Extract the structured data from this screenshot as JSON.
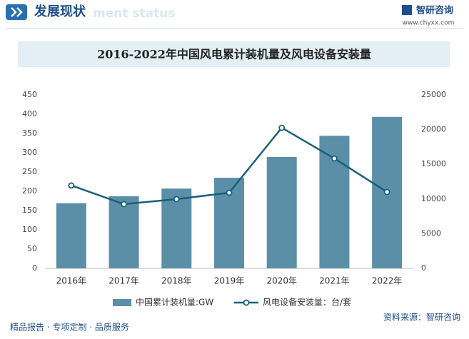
{
  "header": {
    "title": "发展现状",
    "watermark": "ment status",
    "brand": "智研咨询",
    "website": "www.chyxx.com"
  },
  "chart_data": {
    "type": "bar",
    "title": "2016-2022年中国风电累计装机量及风电设备安装量",
    "categories": [
      "2016年",
      "2017年",
      "2018年",
      "2019年",
      "2020年",
      "2021年",
      "2022年"
    ],
    "series": [
      {
        "name": "中国累计装机量:GW",
        "type": "bar",
        "color": "#5b8fa8",
        "values": [
          169,
          187,
          207,
          235,
          289,
          344,
          393
        ]
      },
      {
        "name": "风电设备安装量：台/套",
        "type": "line",
        "axis": "y2",
        "color": "#1a5f7a",
        "values": [
          11950,
          9260,
          9980,
          10900,
          20270,
          15840,
          11010
        ]
      }
    ],
    "ylim": [
      0,
      450
    ],
    "yticks": [
      0,
      50,
      100,
      150,
      200,
      250,
      300,
      350,
      400,
      450
    ],
    "y2lim": [
      0,
      25000
    ],
    "y2ticks": [
      0,
      5000,
      10000,
      15000,
      20000,
      25000
    ],
    "legend": "bottom"
  },
  "footer": {
    "slogan": "精品报告 · 专项定制 · 品质服务",
    "source": "资料来源：智研咨询"
  }
}
